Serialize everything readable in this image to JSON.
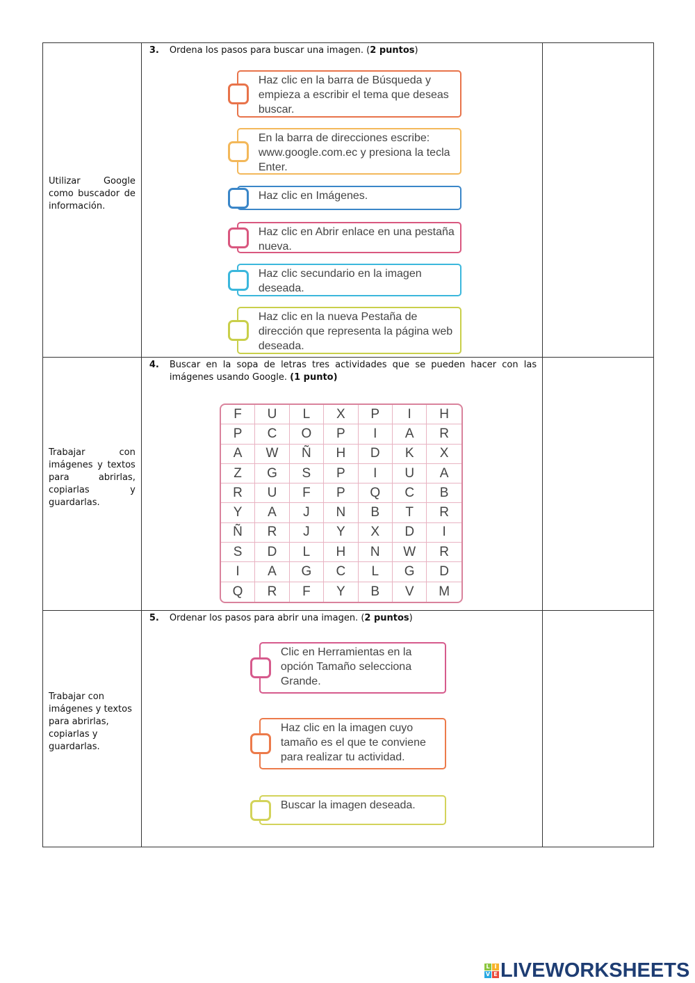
{
  "rows": [
    {
      "objective": "Utilizar Google como buscador de información.",
      "number": "3.",
      "question_pre": "Ordena los pasos para buscar una imagen. (",
      "question_bold": "2 puntos",
      "question_post": ")",
      "steps": [
        {
          "text": "Haz clic en la barra de Búsqueda y empieza a escribir el tema que deseas buscar.",
          "color": "#e8734a"
        },
        {
          "text": "En la barra de direcciones escribe: www.google.com.ec y presiona la tecla Enter.",
          "color": "#f3b85a"
        },
        {
          "text": "Haz clic en Imágenes.",
          "color": "#3a86c8"
        },
        {
          "text": "Haz clic en Abrir enlace en una pestaña nueva.",
          "color": "#d9577f"
        },
        {
          "text": "Haz clic secundario en la imagen deseada.",
          "color": "#3bb7dc"
        },
        {
          "text": "Haz clic en la nueva Pestaña de dirección que representa la página web deseada.",
          "color": "#c9cf4a"
        }
      ]
    },
    {
      "objective": "Trabajar con imágenes y textos para abrirlas, copiarlas y guardarlas.",
      "number": "4.",
      "question_pre": "Buscar en la sopa de letras tres actividades que se pueden hacer con las imágenes usando Google. ",
      "question_bold": "(1 punto)",
      "question_post": "",
      "word_search": [
        [
          "F",
          "U",
          "L",
          "X",
          "P",
          "I",
          "H"
        ],
        [
          "P",
          "C",
          "O",
          "P",
          "I",
          "A",
          "R"
        ],
        [
          "A",
          "W",
          "Ñ",
          "H",
          "D",
          "K",
          "X"
        ],
        [
          "Z",
          "G",
          "S",
          "P",
          "I",
          "U",
          "A"
        ],
        [
          "R",
          "U",
          "F",
          "P",
          "Q",
          "C",
          "B"
        ],
        [
          "Y",
          "A",
          "J",
          "N",
          "B",
          "T",
          "R"
        ],
        [
          "Ñ",
          "R",
          "J",
          "Y",
          "X",
          "D",
          "I"
        ],
        [
          "S",
          "D",
          "L",
          "H",
          "N",
          "W",
          "R"
        ],
        [
          "I",
          "A",
          "G",
          "C",
          "L",
          "G",
          "D"
        ],
        [
          "Q",
          "R",
          "F",
          "Y",
          "B",
          "V",
          "M"
        ]
      ]
    },
    {
      "objective": "Trabajar con imágenes y textos para abrirlas, copiarlas y guardarlas.",
      "number": "5.",
      "question_pre": "Ordenar los pasos para abrir una imagen. (",
      "question_bold": "2 puntos",
      "question_post": ")",
      "steps": [
        {
          "text": "Clic en Herramientas en la opción Tamaño selecciona Grande.",
          "color": "#d65a8c"
        },
        {
          "text": "Haz clic en la imagen cuyo tamaño es el que te conviene para realizar tu actividad.",
          "color": "#ec7a4a"
        },
        {
          "text": "Buscar la imagen deseada.",
          "color": "#d3d35a"
        }
      ]
    }
  ],
  "logo": {
    "text": "LIVEWORKSHEETS",
    "mark": "LIVE",
    "color": "#1e3d73"
  }
}
